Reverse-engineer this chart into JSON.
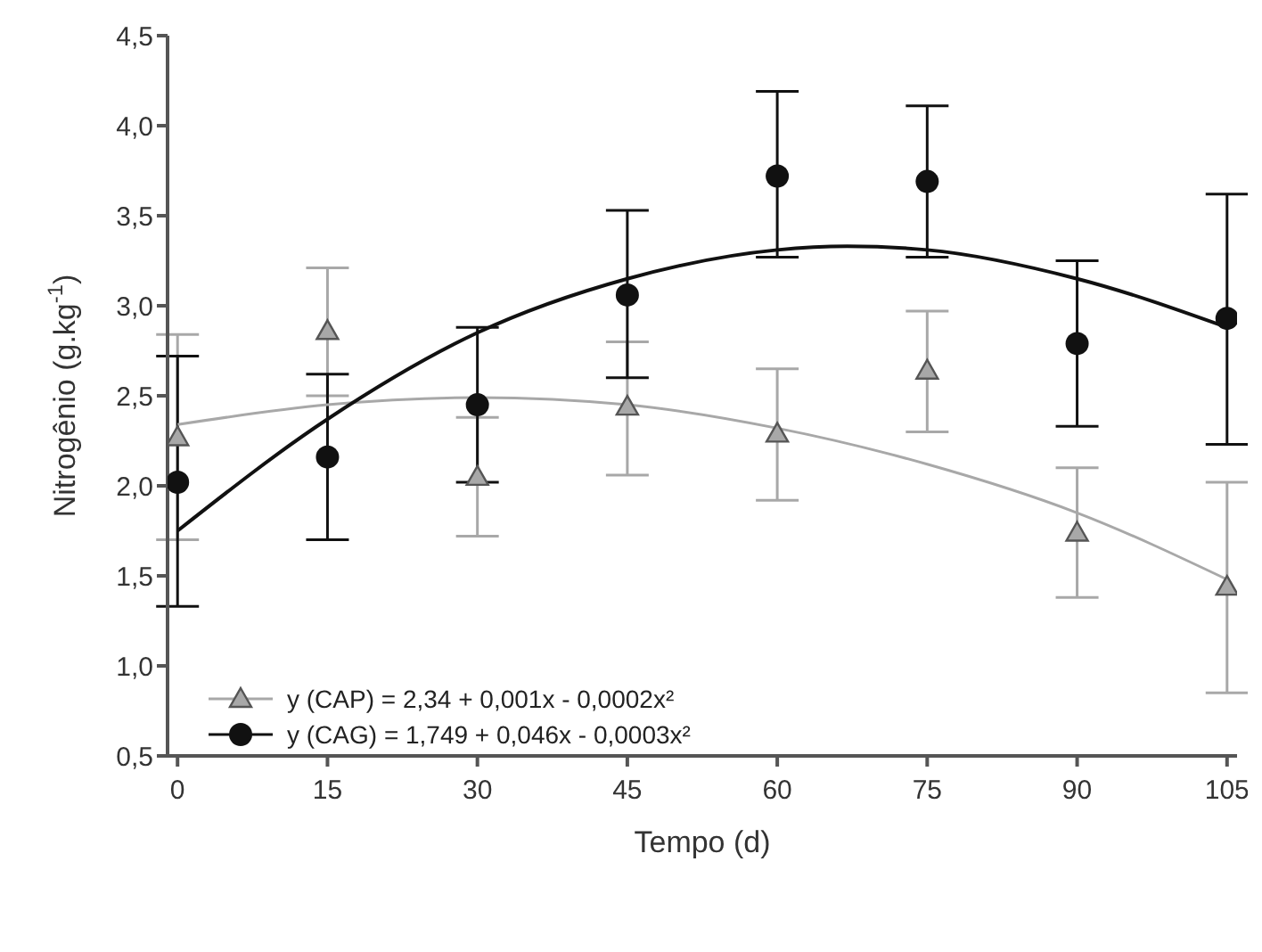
{
  "chart_data": {
    "type": "scatter",
    "xlabel": "Tempo (d)",
    "ylabel": "Nitrogênio (g.kg$^{-1}$)",
    "xlim": [
      -1,
      106
    ],
    "xticks": [
      0,
      15,
      30,
      45,
      60,
      75,
      90,
      105
    ],
    "ylim": [
      0.5,
      4.5
    ],
    "yticks": [
      {
        "value": 0.5,
        "label": "0,5"
      },
      {
        "value": 1,
        "label": "1,0"
      },
      {
        "value": 1.5,
        "label": "1,5"
      },
      {
        "value": 2,
        "label": "2,0"
      },
      {
        "value": 2.5,
        "label": "2,5"
      },
      {
        "value": 3,
        "label": "3,0"
      },
      {
        "value": 3.5,
        "label": "3,5"
      },
      {
        "value": 4,
        "label": "4,0"
      },
      {
        "value": 4.5,
        "label": "4,5"
      }
    ],
    "grid": false,
    "legend": "bottom left",
    "x": [
      0,
      15,
      30,
      45,
      60,
      75,
      90,
      105
    ],
    "series": [
      {
        "name": "y (CAP) = 2,34 + 0,001x - 0,0002x²",
        "marker": "triangle",
        "color": "#a8a8a8",
        "values": [
          2.27,
          2.86,
          2.05,
          2.44,
          2.29,
          2.64,
          1.74,
          1.44
        ],
        "errors": [
          [
            1.7,
            2.84
          ],
          [
            2.5,
            3.21
          ],
          [
            1.72,
            2.38
          ],
          [
            2.06,
            2.8
          ],
          [
            1.92,
            2.65
          ],
          [
            2.3,
            2.97
          ],
          [
            1.38,
            2.1
          ],
          [
            0.85,
            2.02
          ]
        ]
      },
      {
        "name": "y (CAG) = 1,749 + 0,046x - 0,0003x²",
        "marker": "circle",
        "color": "#111111",
        "values": [
          2.02,
          2.16,
          2.45,
          3.06,
          3.72,
          3.69,
          2.79,
          2.93
        ],
        "errors": [
          [
            1.33,
            2.72
          ],
          [
            1.7,
            2.62
          ],
          [
            2.02,
            2.88
          ],
          [
            2.6,
            3.53
          ],
          [
            3.27,
            4.19
          ],
          [
            3.27,
            4.11
          ],
          [
            2.33,
            3.25
          ],
          [
            2.23,
            3.62
          ]
        ]
      },
      {
        "type": "line",
        "marker": "none",
        "color": "#a8a8a8",
        "x": [
          0,
          15,
          30,
          45,
          60,
          75,
          90,
          105
        ],
        "values": [
          2.34,
          2.45,
          2.49,
          2.45,
          2.32,
          2.12,
          1.85,
          1.48
        ]
      },
      {
        "type": "line",
        "marker": "none",
        "color": "#111111",
        "x": [
          0,
          15,
          30,
          45,
          60,
          67,
          75,
          90,
          105
        ],
        "values": [
          1.75,
          2.37,
          2.85,
          3.15,
          3.31,
          3.33,
          3.31,
          3.15,
          2.88
        ]
      }
    ]
  }
}
